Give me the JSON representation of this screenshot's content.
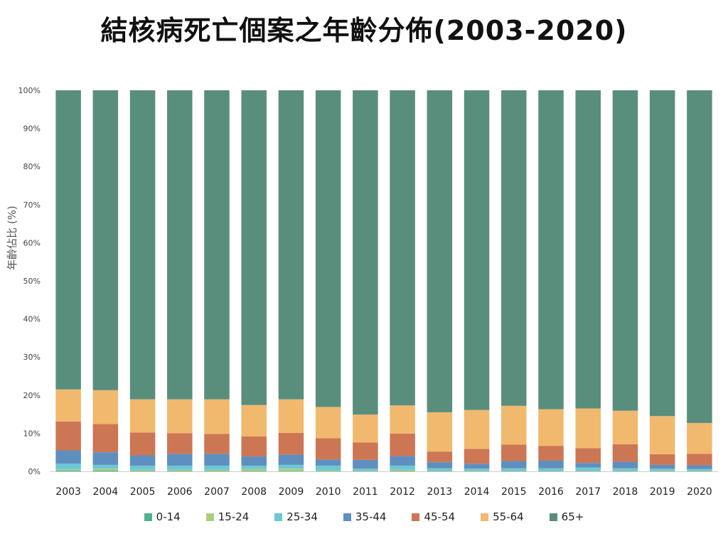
{
  "chart_data": {
    "type": "bar",
    "stacked": true,
    "title": "結核病死亡個案之年齡分佈(2003-2020)",
    "ylabel": "年齡佔比 (%)",
    "xlabel": "",
    "ylim": [
      0,
      100
    ],
    "yticks": [
      "0%",
      "10%",
      "20%",
      "30%",
      "40%",
      "50%",
      "60%",
      "70%",
      "80%",
      "90%",
      "100%"
    ],
    "grid": false,
    "legend_position": "bottom",
    "categories": [
      "2003",
      "2004",
      "2005",
      "2006",
      "2007",
      "2008",
      "2009",
      "2010",
      "2011",
      "2012",
      "2013",
      "2014",
      "2015",
      "2016",
      "2017",
      "2018",
      "2019",
      "2020"
    ],
    "series": [
      {
        "name": "0-14",
        "color": "#4fb28f",
        "values": [
          0.2,
          0.2,
          0.1,
          0.1,
          0.1,
          0.1,
          0.1,
          0.1,
          0.1,
          0.1,
          0.1,
          0.1,
          0.1,
          0.1,
          0.1,
          0.1,
          0.1,
          0.1
        ]
      },
      {
        "name": "15-24",
        "color": "#a9cf7c",
        "values": [
          0.3,
          0.5,
          0.3,
          0.3,
          0.3,
          0.5,
          0.6,
          0.2,
          0.1,
          0.3,
          0.1,
          0.1,
          0.1,
          0.1,
          0.1,
          0.1,
          0.1,
          0.1
        ]
      },
      {
        "name": "25-34",
        "color": "#6cc8d6",
        "values": [
          1.5,
          1.0,
          1.1,
          1.1,
          1.1,
          0.9,
          1.0,
          1.2,
          0.5,
          1.1,
          0.6,
          0.5,
          0.6,
          0.6,
          0.8,
          0.6,
          0.5,
          0.4
        ]
      },
      {
        "name": "35-44",
        "color": "#5e8fbf",
        "values": [
          3.5,
          3.3,
          2.7,
          3.1,
          3.1,
          2.4,
          2.7,
          1.6,
          2.3,
          2.5,
          1.6,
          1.3,
          1.9,
          2.0,
          1.2,
          1.7,
          1.0,
          1.0
        ]
      },
      {
        "name": "45-54",
        "color": "#cd7654",
        "values": [
          7.6,
          7.4,
          6.0,
          5.4,
          5.2,
          5.3,
          5.7,
          5.6,
          4.6,
          5.9,
          2.8,
          3.9,
          4.3,
          3.9,
          3.9,
          4.6,
          2.8,
          3.0
        ]
      },
      {
        "name": "55-64",
        "color": "#f1b96d",
        "values": [
          8.4,
          8.9,
          8.7,
          8.9,
          9.1,
          8.2,
          8.8,
          8.2,
          7.3,
          7.4,
          10.3,
          10.2,
          10.2,
          9.6,
          10.4,
          8.8,
          10.0,
          8.1
        ]
      },
      {
        "name": "65+",
        "color": "#5a8e7c",
        "values": [
          78.5,
          78.7,
          81.1,
          81.1,
          81.1,
          82.6,
          81.1,
          83.1,
          85.1,
          82.7,
          84.5,
          83.9,
          82.8,
          83.7,
          83.5,
          84.1,
          85.5,
          87.3
        ]
      }
    ]
  }
}
